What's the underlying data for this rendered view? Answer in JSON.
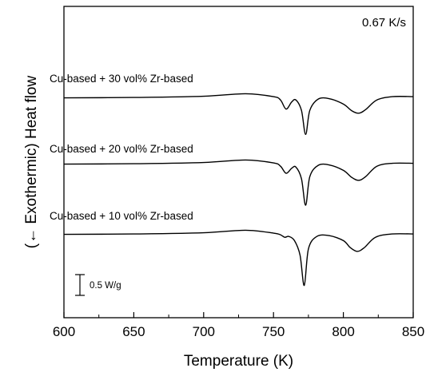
{
  "chart_data": {
    "type": "line",
    "xlabel": "Temperature (K)",
    "ylabel": "(← Exothermic) Heat flow",
    "xlim": [
      600,
      850
    ],
    "x_ticks": [
      "600",
      "650",
      "700",
      "750",
      "800",
      "850"
    ],
    "annotation": "0.67 K/s",
    "scale_bar_label": "0.5 W/g",
    "series_labels": [
      "Cu-based + 30 vol% Zr-based",
      "Cu-based + 20 vol% Zr-based",
      "Cu-based + 10 vol% Zr-based"
    ],
    "series": [
      {
        "name": "Cu-based + 30 vol% Zr-based",
        "x": [
          600,
          650,
          700,
          730,
          750,
          755,
          759,
          763,
          766,
          770,
          773,
          776,
          782,
          790,
          800,
          806,
          811,
          816,
          824,
          835,
          850
        ],
        "y": [
          -0.05,
          -0.04,
          -0.01,
          0.05,
          -0.02,
          -0.1,
          -0.32,
          -0.15,
          -0.1,
          -0.35,
          -0.93,
          -0.35,
          -0.08,
          -0.07,
          -0.2,
          -0.36,
          -0.42,
          -0.33,
          -0.1,
          -0.02,
          -0.02
        ]
      },
      {
        "name": "Cu-based + 20 vol% Zr-based",
        "x": [
          600,
          650,
          700,
          730,
          750,
          755,
          759,
          763,
          766,
          770,
          773,
          776,
          782,
          790,
          800,
          806,
          811,
          816,
          824,
          835,
          850
        ],
        "y": [
          -0.05,
          -0.04,
          -0.01,
          0.05,
          -0.02,
          -0.1,
          -0.27,
          -0.15,
          -0.12,
          -0.4,
          -1.04,
          -0.35,
          -0.08,
          -0.07,
          -0.2,
          -0.37,
          -0.44,
          -0.35,
          -0.1,
          -0.03,
          -0.03
        ]
      },
      {
        "name": "Cu-based + 10 vol% Zr-based",
        "x": [
          600,
          650,
          700,
          730,
          750,
          755,
          758,
          761,
          765,
          769,
          772,
          775,
          781,
          790,
          800,
          805,
          810,
          815,
          823,
          835,
          850
        ],
        "y": [
          -0.05,
          -0.04,
          -0.01,
          0.05,
          -0.02,
          -0.06,
          -0.12,
          -0.1,
          -0.2,
          -0.55,
          -1.28,
          -0.4,
          -0.1,
          -0.08,
          -0.2,
          -0.37,
          -0.46,
          -0.37,
          -0.12,
          -0.04,
          -0.04
        ]
      }
    ],
    "grid": false,
    "legend": "none"
  }
}
